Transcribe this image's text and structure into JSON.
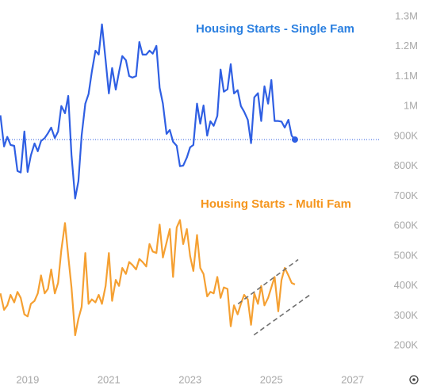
{
  "chart_data": {
    "type": "line",
    "x": [
      2018.33,
      2018.42,
      2018.5,
      2018.58,
      2018.67,
      2018.75,
      2018.83,
      2018.92,
      2019.0,
      2019.08,
      2019.17,
      2019.25,
      2019.33,
      2019.42,
      2019.5,
      2019.58,
      2019.67,
      2019.75,
      2019.83,
      2019.92,
      2020.0,
      2020.08,
      2020.17,
      2020.25,
      2020.33,
      2020.42,
      2020.5,
      2020.58,
      2020.67,
      2020.75,
      2020.83,
      2020.92,
      2021.0,
      2021.08,
      2021.17,
      2021.25,
      2021.33,
      2021.42,
      2021.5,
      2021.58,
      2021.67,
      2021.75,
      2021.83,
      2021.92,
      2022.0,
      2022.08,
      2022.17,
      2022.25,
      2022.33,
      2022.42,
      2022.5,
      2022.58,
      2022.67,
      2022.75,
      2022.83,
      2022.92,
      2023.0,
      2023.08,
      2023.17,
      2023.25,
      2023.33,
      2023.42,
      2023.5,
      2023.58,
      2023.67,
      2023.75,
      2023.83,
      2023.92,
      2024.0,
      2024.08,
      2024.17,
      2024.25,
      2024.33,
      2024.42,
      2024.5,
      2024.58,
      2024.67,
      2024.75,
      2024.83,
      2024.92,
      2025.0,
      2025.08,
      2025.17,
      2025.25,
      2025.33,
      2025.42,
      2025.5,
      2025.58
    ],
    "series": [
      {
        "name": "Housing Starts - Single Fam",
        "color": "#2f5fe3",
        "label_color": "#2a7fe0",
        "values": [
          970000,
          866000,
          898000,
          871000,
          868000,
          784000,
          779000,
          916000,
          781000,
          836000,
          876000,
          850000,
          884000,
          894000,
          910000,
          929000,
          894000,
          916000,
          1001000,
          977000,
          1035000,
          837000,
          692000,
          750000,
          903000,
          1009000,
          1041000,
          1115000,
          1186000,
          1173000,
          1274000,
          1154000,
          1043000,
          1128000,
          1056000,
          1115000,
          1168000,
          1154000,
          1101000,
          1096000,
          1101000,
          1215000,
          1173000,
          1173000,
          1186000,
          1176000,
          1202000,
          1062000,
          1009000,
          908000,
          921000,
          882000,
          868000,
          800000,
          802000,
          829000,
          863000,
          871000,
          1009000,
          942000,
          1003000,
          902000,
          950000,
          935000,
          968000,
          1123000,
          1049000,
          1057000,
          1141000,
          1043000,
          1054000,
          1001000,
          982000,
          955000,
          877000,
          1030000,
          1044000,
          951000,
          1067000,
          1009000,
          1088000,
          951000,
          951000,
          949000,
          929000,
          955000,
          902000,
          889000
        ]
      },
      {
        "name": "Housing Starts - Multi Fam",
        "color": "#f5a032",
        "label_color": "#f5951c",
        "values": [
          375000,
          320000,
          335000,
          370000,
          345000,
          380000,
          360000,
          305000,
          298000,
          340000,
          350000,
          375000,
          435000,
          375000,
          390000,
          455000,
          375000,
          410000,
          520000,
          610000,
          500000,
          395000,
          235000,
          290000,
          330000,
          510000,
          340000,
          355000,
          345000,
          370000,
          340000,
          400000,
          510000,
          350000,
          420000,
          400000,
          460000,
          440000,
          480000,
          470000,
          455000,
          490000,
          480000,
          465000,
          540000,
          515000,
          510000,
          605000,
          495000,
          545000,
          590000,
          430000,
          595000,
          620000,
          540000,
          590000,
          500000,
          450000,
          570000,
          460000,
          440000,
          365000,
          380000,
          375000,
          430000,
          360000,
          395000,
          390000,
          265000,
          335000,
          305000,
          340000,
          370000,
          355000,
          270000,
          375000,
          340000,
          400000,
          335000,
          360000,
          395000,
          430000,
          315000,
          420000,
          460000,
          435000,
          410000,
          405000
        ]
      }
    ],
    "trend_lines": {
      "color": "#707070",
      "lines": [
        {
          "x": [
            2024.18,
            2025.66
          ],
          "y": [
            340000,
            488000
          ]
        },
        {
          "x": [
            2024.57,
            2025.99
          ],
          "y": [
            236000,
            374000
          ]
        }
      ]
    },
    "xlim": [
      2018.32,
      2027.65
    ],
    "xticks": [
      2019,
      2021,
      2023,
      2025,
      2027
    ],
    "ylim": [
      100000,
      1350000
    ],
    "yticks": [
      {
        "value": 200000,
        "label": "200K"
      },
      {
        "value": 300000,
        "label": "300K"
      },
      {
        "value": 400000,
        "label": "400K"
      },
      {
        "value": 500000,
        "label": "500K"
      },
      {
        "value": 600000,
        "label": "600K"
      },
      {
        "value": 700000,
        "label": "700K"
      },
      {
        "value": 800000,
        "label": "800K"
      },
      {
        "value": 900000,
        "label": "900K"
      },
      {
        "value": 1000000,
        "label": "1M"
      },
      {
        "value": 1100000,
        "label": "1.1M"
      },
      {
        "value": 1200000,
        "label": "1.2M"
      },
      {
        "value": 1300000,
        "label": "1.3M"
      }
    ],
    "grid": false
  }
}
